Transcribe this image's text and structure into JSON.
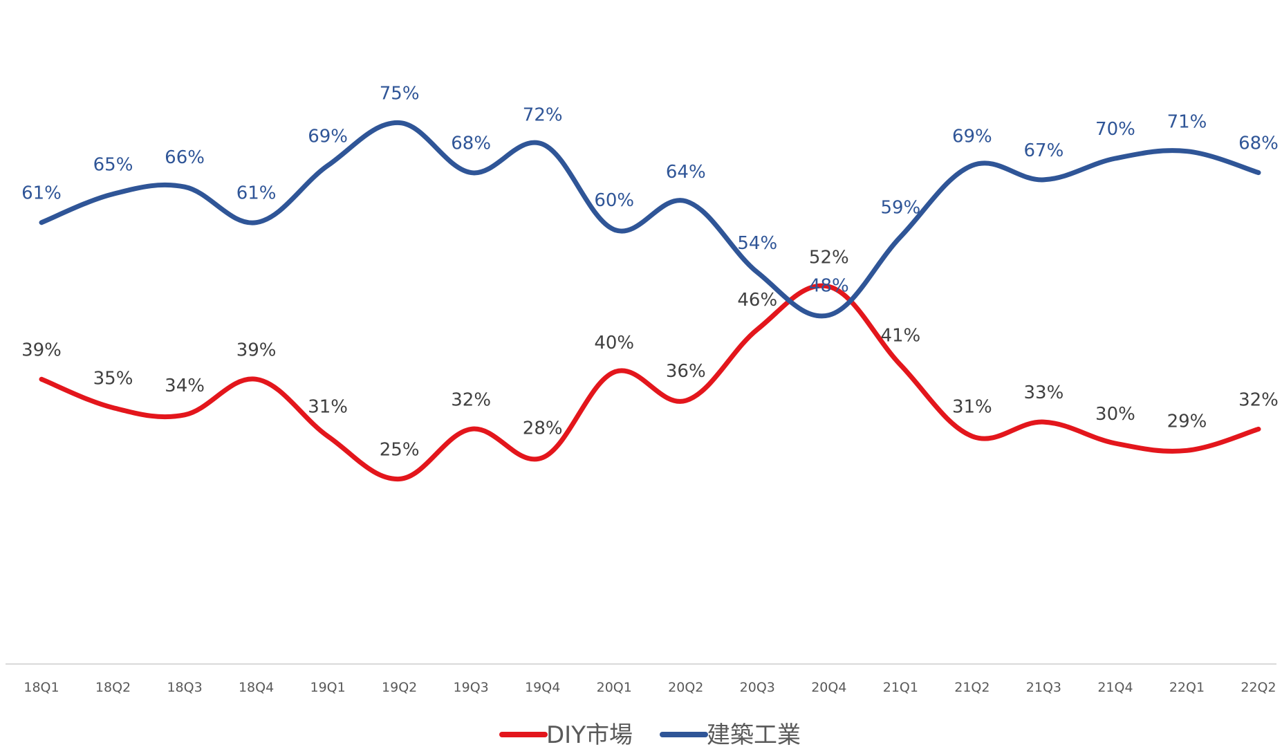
{
  "chart_data": {
    "type": "line",
    "title": "",
    "xlabel": "",
    "ylabel": "",
    "ylim": [
      0,
      80
    ],
    "grid": false,
    "legend_position": "bottom-center",
    "categories": [
      "18Q1",
      "18Q2",
      "18Q3",
      "18Q4",
      "19Q1",
      "19Q2",
      "19Q3",
      "19Q4",
      "20Q1",
      "20Q2",
      "20Q3",
      "20Q4",
      "21Q1",
      "21Q2",
      "21Q3",
      "21Q4",
      "22Q1",
      "22Q2"
    ],
    "series": [
      {
        "name": "DIY市場",
        "color": "#e3161c",
        "values": [
          39,
          35,
          34,
          39,
          31,
          25,
          32,
          28,
          40,
          36,
          46,
          52,
          41,
          31,
          33,
          30,
          29,
          32
        ],
        "labels": [
          "39%",
          "35%",
          "34%",
          "39%",
          "31%",
          "25%",
          "32%",
          "28%",
          "40%",
          "36%",
          "46%",
          "52%",
          "41%",
          "31%",
          "33%",
          "30%",
          "29%",
          "32%"
        ],
        "label_color": "#404040"
      },
      {
        "name": "建築工業",
        "color": "#2f5597",
        "values": [
          61,
          65,
          66,
          61,
          69,
          75,
          68,
          72,
          60,
          64,
          54,
          48,
          59,
          69,
          67,
          70,
          71,
          68
        ],
        "labels": [
          "61%",
          "65%",
          "66%",
          "61%",
          "69%",
          "75%",
          "68%",
          "72%",
          "60%",
          "64%",
          "54%",
          "48%",
          "59%",
          "69%",
          "67%",
          "70%",
          "71%",
          "68%"
        ],
        "label_color": "#2f5597"
      }
    ]
  }
}
